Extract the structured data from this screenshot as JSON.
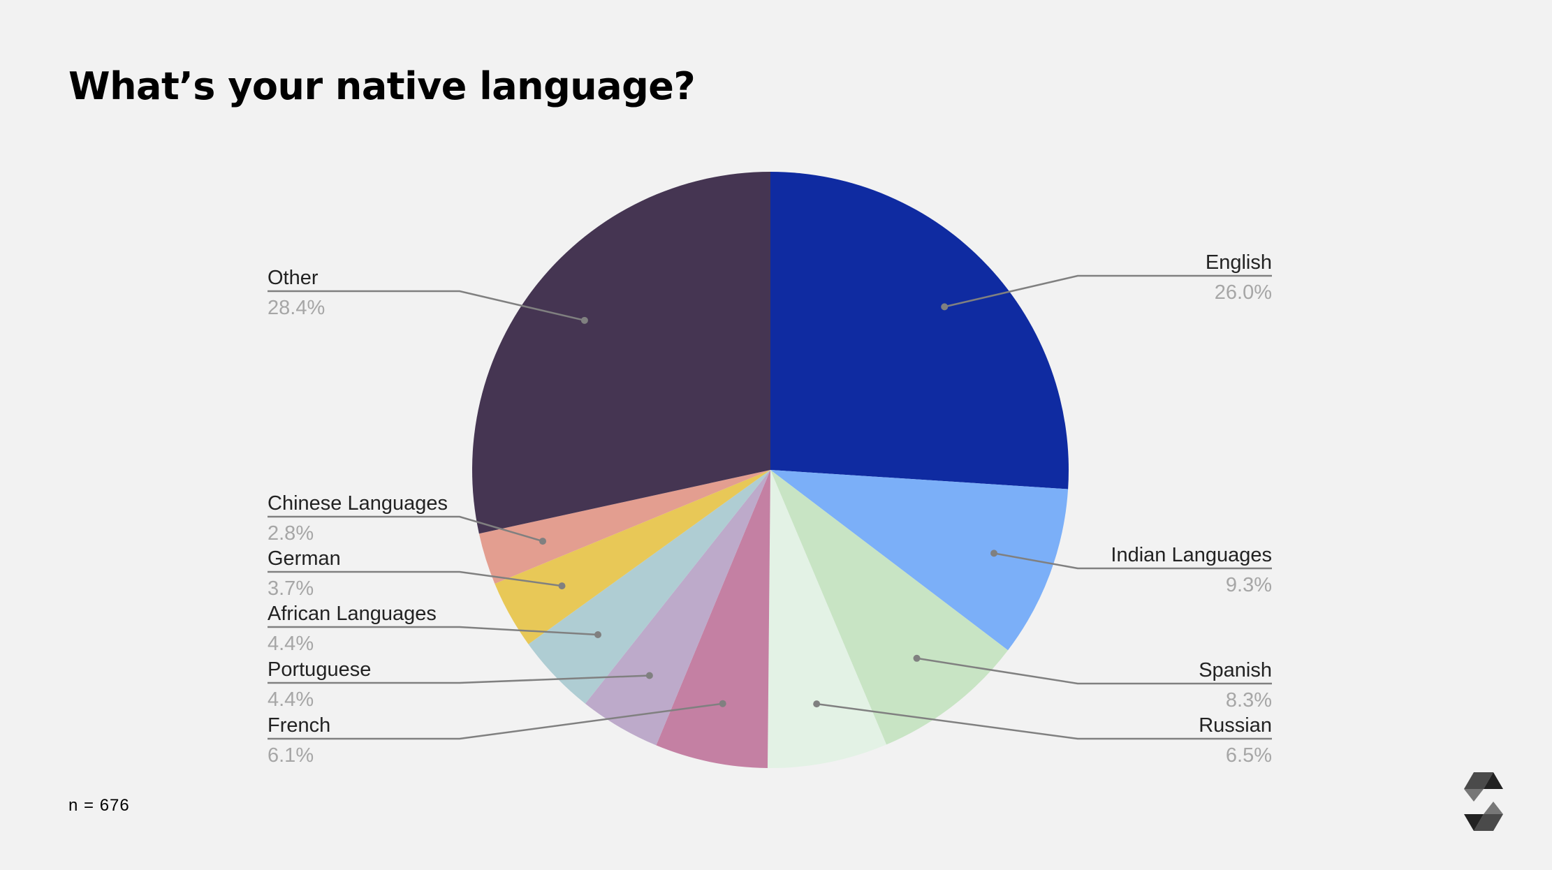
{
  "slide": {
    "title": "What’s your native language?",
    "sample": "n = 676"
  },
  "chart_data": {
    "type": "pie",
    "title": "What’s your native language?",
    "start_angle_deg": 0,
    "direction": "clockwise",
    "slices": [
      {
        "label": "English",
        "value": 26.0,
        "display": "26.0%",
        "color": "#0f2ba1",
        "side": "right"
      },
      {
        "label": "Indian Languages",
        "value": 9.3,
        "display": "9.3%",
        "color": "#7baff8",
        "side": "right"
      },
      {
        "label": "Spanish",
        "value": 8.3,
        "display": "8.3%",
        "color": "#c8e4c4",
        "side": "right"
      },
      {
        "label": "Russian",
        "value": 6.5,
        "display": "6.5%",
        "color": "#e3f2e5",
        "side": "right"
      },
      {
        "label": "French",
        "value": 6.1,
        "display": "6.1%",
        "color": "#c480a3",
        "side": "left"
      },
      {
        "label": "Portuguese",
        "value": 4.4,
        "display": "4.4%",
        "color": "#bdaaca",
        "side": "left"
      },
      {
        "label": "African Languages",
        "value": 4.4,
        "display": "4.4%",
        "color": "#afcdd3",
        "side": "left"
      },
      {
        "label": "German",
        "value": 3.7,
        "display": "3.7%",
        "color": "#e8c857",
        "side": "left"
      },
      {
        "label": "Chinese Languages",
        "value": 2.8,
        "display": "2.8%",
        "color": "#e39e90",
        "side": "left"
      },
      {
        "label": "Other",
        "value": 28.4,
        "display": "28.4%",
        "color": "#453552",
        "side": "left"
      }
    ],
    "label_text_color": "#222222",
    "value_text_color": "#a6a6a6",
    "leader_color": "#808080"
  },
  "logo": {
    "icon": "solidity-logo-icon",
    "color": "#2b2b2b"
  }
}
